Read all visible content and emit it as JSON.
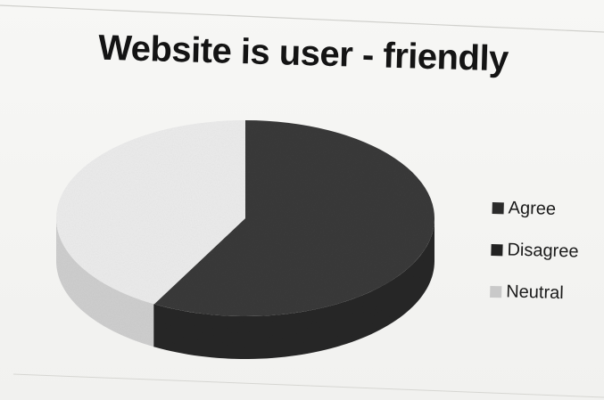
{
  "chart_data": {
    "type": "pie",
    "title": "Website is user - friendly",
    "categories": [
      "Agree",
      "Disagree",
      "Neutral"
    ],
    "values": [
      58,
      0,
      42
    ],
    "legend_position": "right",
    "style": "3d"
  },
  "legend": {
    "items": [
      {
        "label": "Agree",
        "color": "#2b2b2b"
      },
      {
        "label": "Disagree",
        "color": "#222222"
      },
      {
        "label": "Neutral",
        "color": "#c9c9c9"
      }
    ]
  },
  "colors": {
    "agree_top": "#3a3a3a",
    "agree_side": "#262626",
    "neutral_top": "#ececec",
    "neutral_side": "#cfcfcf",
    "text": "#141414"
  }
}
